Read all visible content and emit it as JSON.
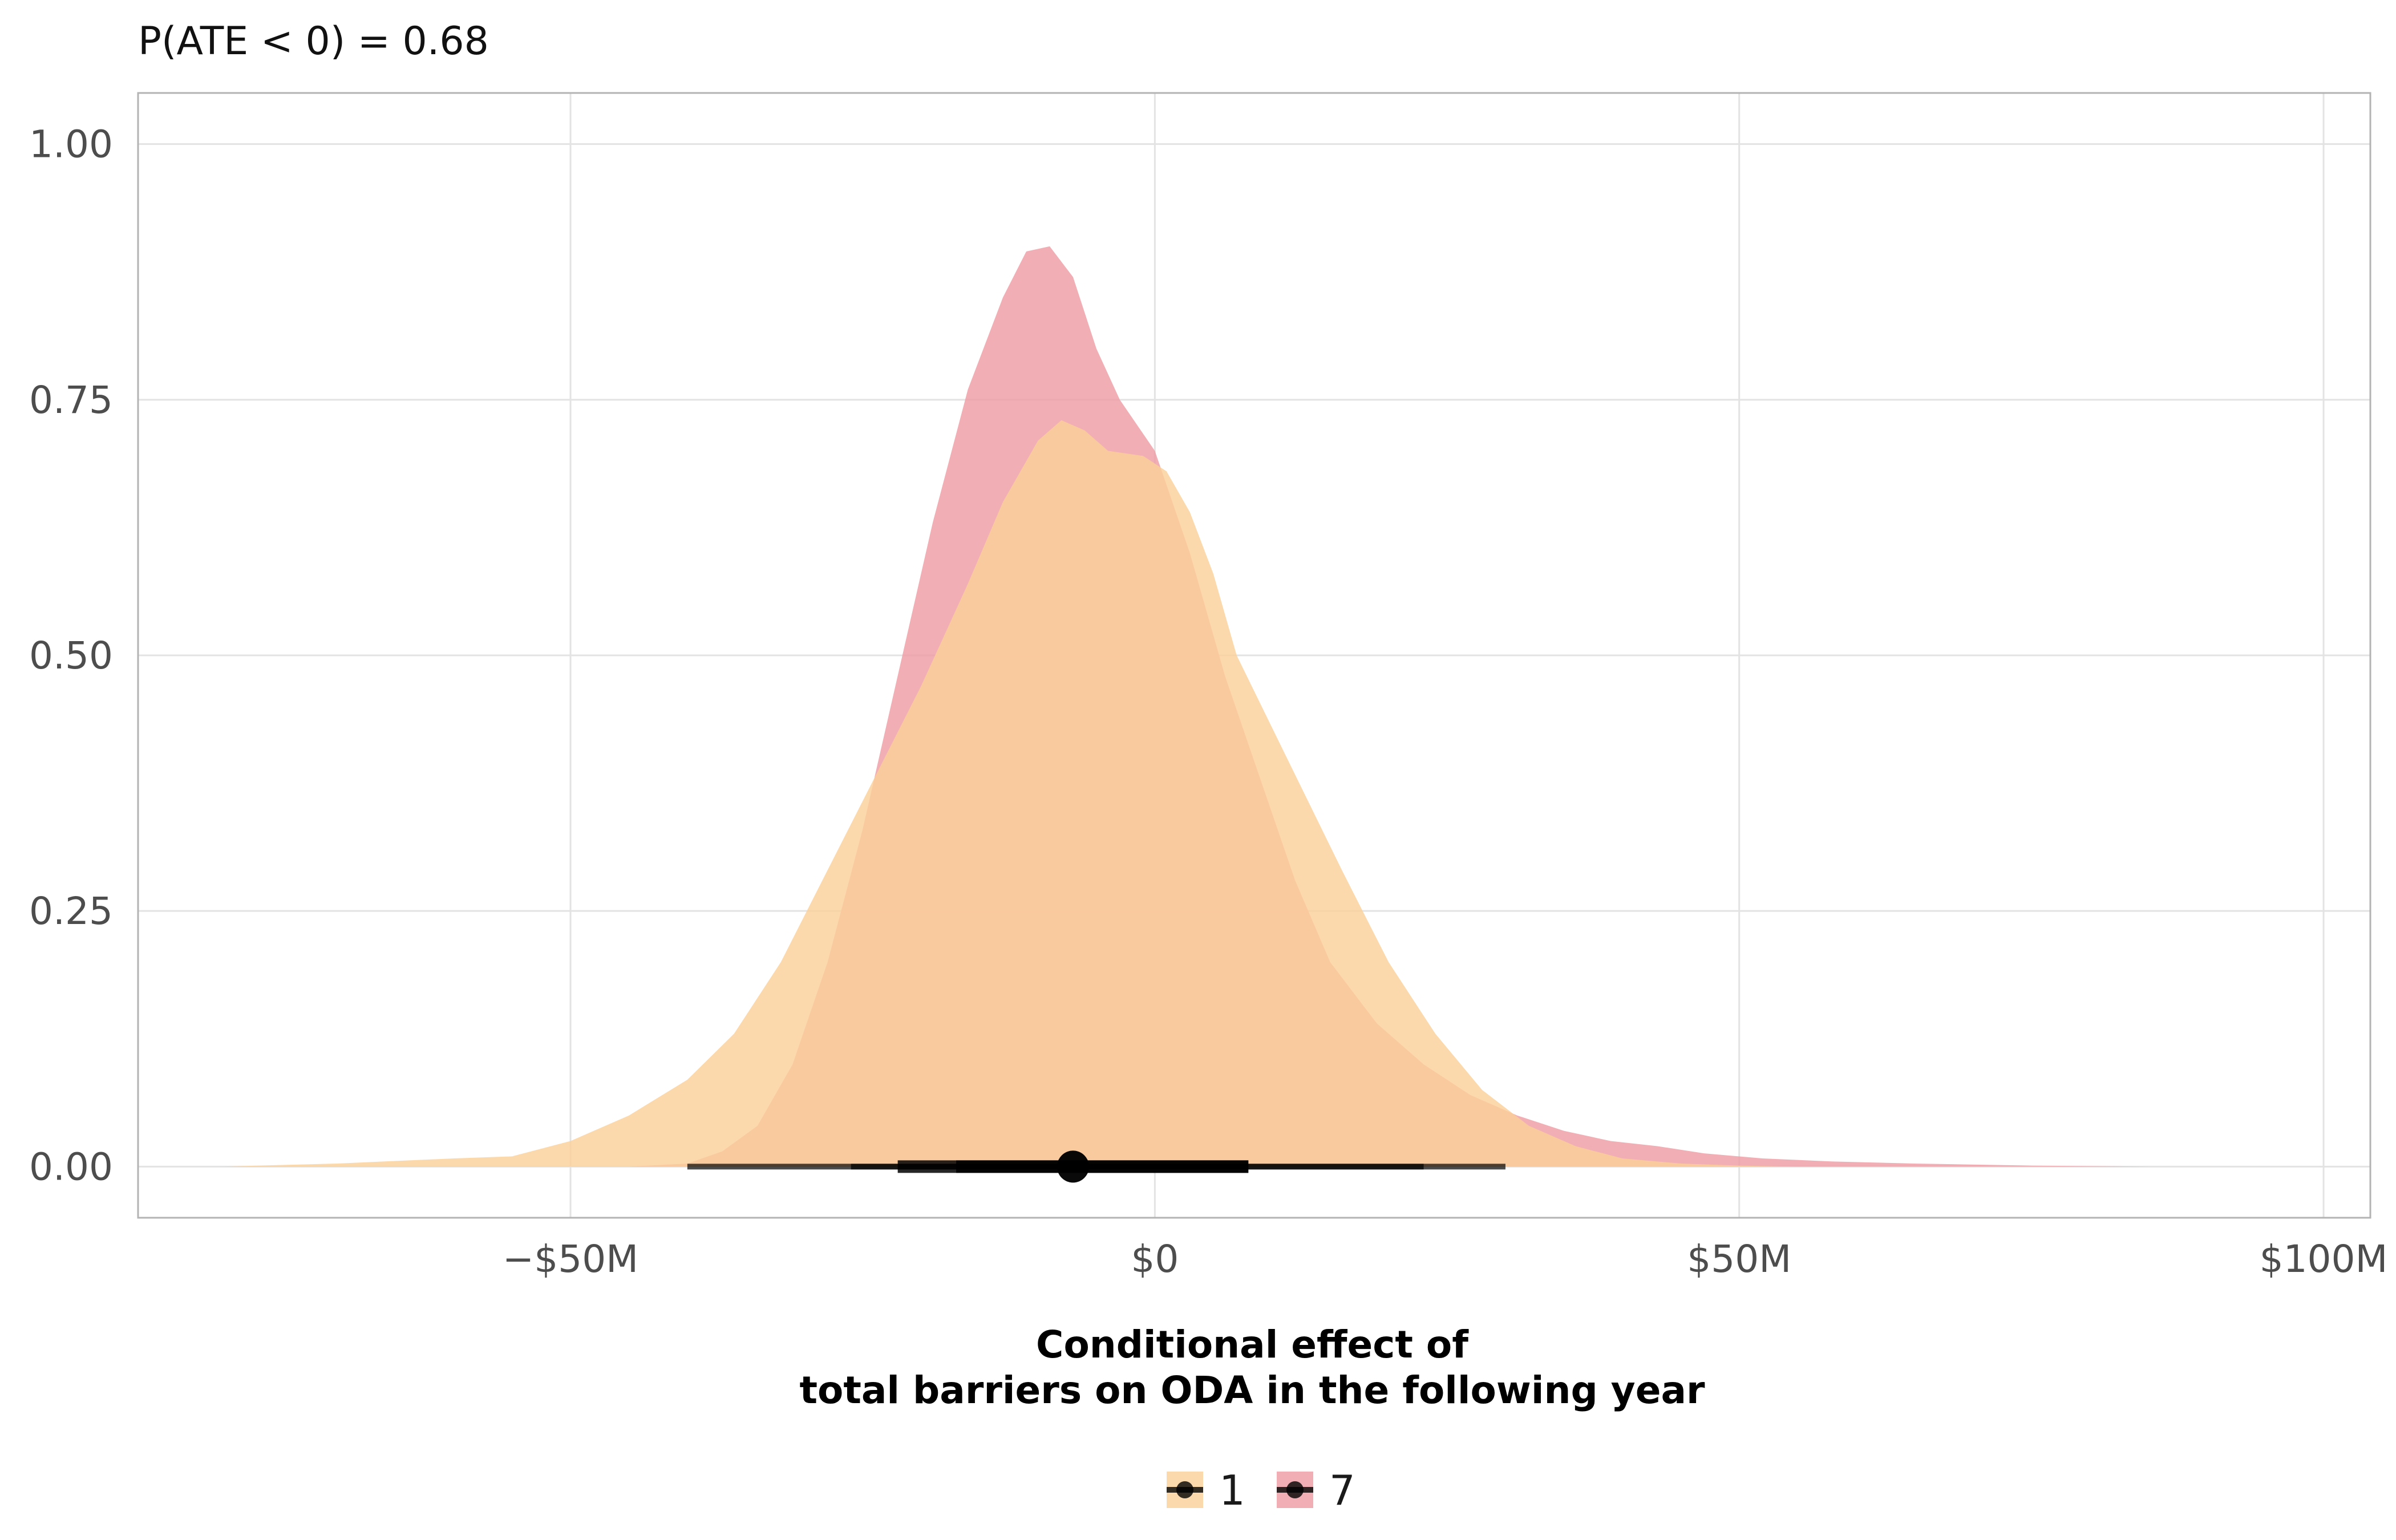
{
  "chart_data": {
    "type": "area",
    "subtitle": "P(ATE < 0) = 0.68",
    "xlabel_line1": "Conditional effect of",
    "xlabel_line2": "total barriers on ODA in the following year",
    "ylabel": "",
    "xlim": [
      -87,
      104
    ],
    "ylim": [
      -0.05,
      1.05
    ],
    "x_ticks": [
      {
        "value": -50,
        "label": "−$50M"
      },
      {
        "value": 0,
        "label": "$0"
      },
      {
        "value": 50,
        "label": "$50M"
      },
      {
        "value": 100,
        "label": "$100M"
      }
    ],
    "y_ticks": [
      {
        "value": 0,
        "label": "0.00"
      },
      {
        "value": 0.25,
        "label": "0.25"
      },
      {
        "value": 0.5,
        "label": "0.50"
      },
      {
        "value": 0.75,
        "label": "0.75"
      },
      {
        "value": 1.0,
        "label": "1.00"
      }
    ],
    "grid": true,
    "legend_position": "bottom",
    "series": [
      {
        "name": "1",
        "color": "#fbd19a",
        "points": [
          [
            -80,
            0
          ],
          [
            -70,
            0.003
          ],
          [
            -60,
            0.008
          ],
          [
            -55,
            0.01
          ],
          [
            -50,
            0.025
          ],
          [
            -45,
            0.05
          ],
          [
            -40,
            0.085
          ],
          [
            -36,
            0.13
          ],
          [
            -32,
            0.2
          ],
          [
            -28,
            0.29
          ],
          [
            -24,
            0.38
          ],
          [
            -20,
            0.47
          ],
          [
            -16,
            0.57
          ],
          [
            -13,
            0.65
          ],
          [
            -10,
            0.71
          ],
          [
            -8,
            0.73
          ],
          [
            -6,
            0.72
          ],
          [
            -4,
            0.7
          ],
          [
            -1,
            0.695
          ],
          [
            1,
            0.68
          ],
          [
            3,
            0.64
          ],
          [
            5,
            0.58
          ],
          [
            7,
            0.5
          ],
          [
            10,
            0.43
          ],
          [
            13,
            0.36
          ],
          [
            16,
            0.29
          ],
          [
            20,
            0.2
          ],
          [
            24,
            0.13
          ],
          [
            28,
            0.075
          ],
          [
            32,
            0.04
          ],
          [
            36,
            0.02
          ],
          [
            40,
            0.008
          ],
          [
            45,
            0.003
          ],
          [
            50,
            0.001
          ],
          [
            55,
            0
          ]
        ],
        "point_estimate": -7,
        "interval_66": [
          -17,
          8
        ],
        "interval_95": [
          -40,
          30
        ]
      },
      {
        "name": "7",
        "color": "#ee9ca5",
        "points": [
          [
            -45,
            0
          ],
          [
            -40,
            0.003
          ],
          [
            -37,
            0.015
          ],
          [
            -34,
            0.04
          ],
          [
            -31,
            0.1
          ],
          [
            -28,
            0.2
          ],
          [
            -25,
            0.33
          ],
          [
            -22,
            0.48
          ],
          [
            -19,
            0.63
          ],
          [
            -16,
            0.76
          ],
          [
            -13,
            0.85
          ],
          [
            -11,
            0.895
          ],
          [
            -9,
            0.9
          ],
          [
            -7,
            0.87
          ],
          [
            -5,
            0.8
          ],
          [
            -3,
            0.75
          ],
          [
            0,
            0.7
          ],
          [
            3,
            0.6
          ],
          [
            6,
            0.48
          ],
          [
            9,
            0.38
          ],
          [
            12,
            0.28
          ],
          [
            15,
            0.2
          ],
          [
            19,
            0.14
          ],
          [
            23,
            0.1
          ],
          [
            27,
            0.07
          ],
          [
            31,
            0.05
          ],
          [
            35,
            0.035
          ],
          [
            39,
            0.025
          ],
          [
            43,
            0.02
          ],
          [
            47,
            0.013
          ],
          [
            52,
            0.008
          ],
          [
            58,
            0.005
          ],
          [
            65,
            0.003
          ],
          [
            75,
            0.001
          ],
          [
            85,
            0
          ],
          [
            95,
            0
          ]
        ],
        "point_estimate": -7,
        "interval_66": [
          -22,
          8
        ],
        "interval_95": [
          -26,
          23
        ]
      }
    ]
  }
}
